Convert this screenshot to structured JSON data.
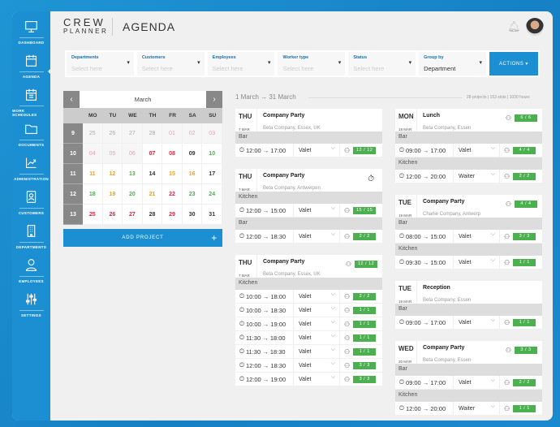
{
  "app": {
    "logo_top": "CREW",
    "logo_bottom": "PLANNER",
    "title": "AGENDA"
  },
  "sidebar": {
    "items": [
      {
        "label": "DASHBOARD",
        "icon": "monitor"
      },
      {
        "label": "AGENDA",
        "icon": "calendar",
        "active": true
      },
      {
        "label": "WORK SCHEDULES",
        "icon": "calendar-grid"
      },
      {
        "label": "DOCUMENTS",
        "icon": "folder"
      },
      {
        "label": "ADMINISTRATION",
        "icon": "chart"
      },
      {
        "label": "CUSTOMERS",
        "icon": "contact-book"
      },
      {
        "label": "DEPARTMENTS",
        "icon": "building"
      },
      {
        "label": "EMPLOYEES",
        "icon": "user"
      },
      {
        "label": "SETTINGS",
        "icon": "sliders"
      }
    ]
  },
  "filters": [
    {
      "label": "Departments",
      "placeholder": "Select here"
    },
    {
      "label": "Customers",
      "placeholder": "Select here"
    },
    {
      "label": "Employees",
      "placeholder": "Select here"
    },
    {
      "label": "Worker type",
      "placeholder": "Select here"
    },
    {
      "label": "Status",
      "placeholder": "Select here"
    },
    {
      "label": "Group by",
      "value": "Department"
    }
  ],
  "actions_label": "ACTIONS ▾",
  "calendar": {
    "month": "March",
    "prev": "‹",
    "next": "›",
    "weekdays": [
      "MO",
      "TU",
      "WE",
      "TH",
      "FR",
      "SA",
      "SU"
    ],
    "weeks": [
      {
        "n": "9",
        "days": [
          [
            "25",
            "#aaaaaa",
            1
          ],
          [
            "26",
            "#aaaaaa",
            1
          ],
          [
            "27",
            "#aaaaaa",
            1
          ],
          [
            "28",
            "#aaaaaa",
            1
          ],
          [
            "01",
            "#e8a0b3",
            1
          ],
          [
            "02",
            "#e8a0b3",
            1
          ],
          [
            "03",
            "#e8a0b3",
            1
          ]
        ]
      },
      {
        "n": "10",
        "days": [
          [
            "04",
            "#e8a0b3",
            1
          ],
          [
            "05",
            "#e8a0b3",
            1
          ],
          [
            "06",
            "#e8a0b3",
            1
          ],
          [
            "07",
            "#d9263f",
            0
          ],
          [
            "08",
            "#d9263f",
            0
          ],
          [
            "09",
            "#333333",
            0
          ],
          [
            "10",
            "#4caf50",
            0
          ]
        ]
      },
      {
        "n": "11",
        "days": [
          [
            "11",
            "#f0a020",
            0
          ],
          [
            "12",
            "#f0a020",
            0
          ],
          [
            "13",
            "#4caf50",
            0
          ],
          [
            "14",
            "#333333",
            0
          ],
          [
            "15",
            "#f0a020",
            0
          ],
          [
            "16",
            "#f0a020",
            0
          ],
          [
            "17",
            "#333333",
            0
          ]
        ]
      },
      {
        "n": "12",
        "days": [
          [
            "18",
            "#4caf50",
            0
          ],
          [
            "19",
            "#f0a020",
            0
          ],
          [
            "20",
            "#4caf50",
            0
          ],
          [
            "21",
            "#f0a020",
            0
          ],
          [
            "22",
            "#d9263f",
            0
          ],
          [
            "23",
            "#4caf50",
            0
          ],
          [
            "24",
            "#4caf50",
            0
          ]
        ]
      },
      {
        "n": "13",
        "days": [
          [
            "25",
            "#d9263f",
            0
          ],
          [
            "26",
            "#d9263f",
            0
          ],
          [
            "27",
            "#d9263f",
            0
          ],
          [
            "28",
            "#333333",
            0
          ],
          [
            "29",
            "#d9263f",
            0
          ],
          [
            "30",
            "#333333",
            0
          ],
          [
            "31",
            "#333333",
            0
          ]
        ]
      }
    ]
  },
  "add_project": "ADD PROJECT",
  "add_icon": "+",
  "range": "1 March → 31 March",
  "summary": "28 projects | 153 slots | 1030 hours",
  "columns": [
    [
      {
        "day": "THU",
        "date": "7 MAR",
        "title": "Company Party",
        "sub": "Beta Company, Essex, UK",
        "groups": [
          {
            "name": "Bar",
            "slots": [
              [
                "12:00 → 17:00",
                "Valet",
                "12 / 12"
              ]
            ]
          }
        ]
      },
      {
        "day": "THU",
        "date": "7 MAR",
        "title": "Company Party",
        "sub": "Beta Company, Antwerpen",
        "timer": true,
        "groups": [
          {
            "name": "Kitchen",
            "slots": [
              [
                "12:00 → 15:00",
                "Valet",
                "15 / 15"
              ]
            ]
          },
          {
            "name": "Bar",
            "slots": [
              [
                "12:00 → 18:30",
                "Valet",
                "2 / 2"
              ]
            ]
          }
        ]
      },
      {
        "day": "THU",
        "date": "7 MAR",
        "title": "Company Party",
        "sub": "Beta Company, Essex, UK",
        "count": "12 / 12",
        "groups": [
          {
            "name": "Kitchen",
            "slots": [
              [
                "10:00 → 18:00",
                "Valet",
                "2 / 2"
              ],
              [
                "10:00 → 18:30",
                "Valet",
                "1 / 1"
              ],
              [
                "10:00 → 19:00",
                "Valet",
                "1 / 1"
              ],
              [
                "11:30 → 18:00",
                "Valet",
                "1 / 1"
              ],
              [
                "11:30 → 18:30",
                "Valet",
                "1 / 1"
              ],
              [
                "12:00 → 18:30",
                "Valet",
                "3 / 3"
              ],
              [
                "12:00 → 19:00",
                "Valet",
                "3 / 3"
              ]
            ]
          }
        ]
      }
    ],
    [
      {
        "day": "MON",
        "date": "18 MAR",
        "title": "Lunch",
        "sub": "Beta Company, Essen",
        "count": "6 / 6",
        "groups": [
          {
            "name": "Bar",
            "slots": [
              [
                "09:00 → 17:00",
                "Valet",
                "4 / 4"
              ]
            ]
          },
          {
            "name": "Kitchen",
            "slots": [
              [
                "12:00 → 20:00",
                "Waiter",
                "2 / 2"
              ]
            ]
          }
        ]
      },
      {
        "day": "TUE",
        "date": "19 MAR",
        "title": "Company Party",
        "sub": "Charlie Company, Antwerp",
        "count": "4 / 4",
        "groups": [
          {
            "name": "Bar",
            "slots": [
              [
                "08:00 → 15:00",
                "Valet",
                "3 / 3"
              ]
            ]
          },
          {
            "name": "Kitchen",
            "slots": [
              [
                "09:30 → 15:00",
                "Valet",
                "1 / 1"
              ]
            ]
          }
        ]
      },
      {
        "day": "TUE",
        "date": "19 MAR",
        "title": "Reception",
        "sub": "Beta Company, Essen",
        "groups": [
          {
            "name": "Bar",
            "slots": [
              [
                "09:00 → 17:00",
                "Valet",
                "1 / 1"
              ]
            ]
          }
        ]
      },
      {
        "day": "WED",
        "date": "20 MAR",
        "title": "Company Party",
        "sub": "Beta Company, Essen",
        "count": "3 / 3",
        "groups": [
          {
            "name": "Bar",
            "slots": [
              [
                "09:00 → 17:00",
                "Valet",
                "2 / 2"
              ]
            ]
          },
          {
            "name": "Kitchen",
            "slots": [
              [
                "12:00 → 20:00",
                "Waiter",
                "1 / 1"
              ]
            ]
          }
        ]
      }
    ]
  ]
}
